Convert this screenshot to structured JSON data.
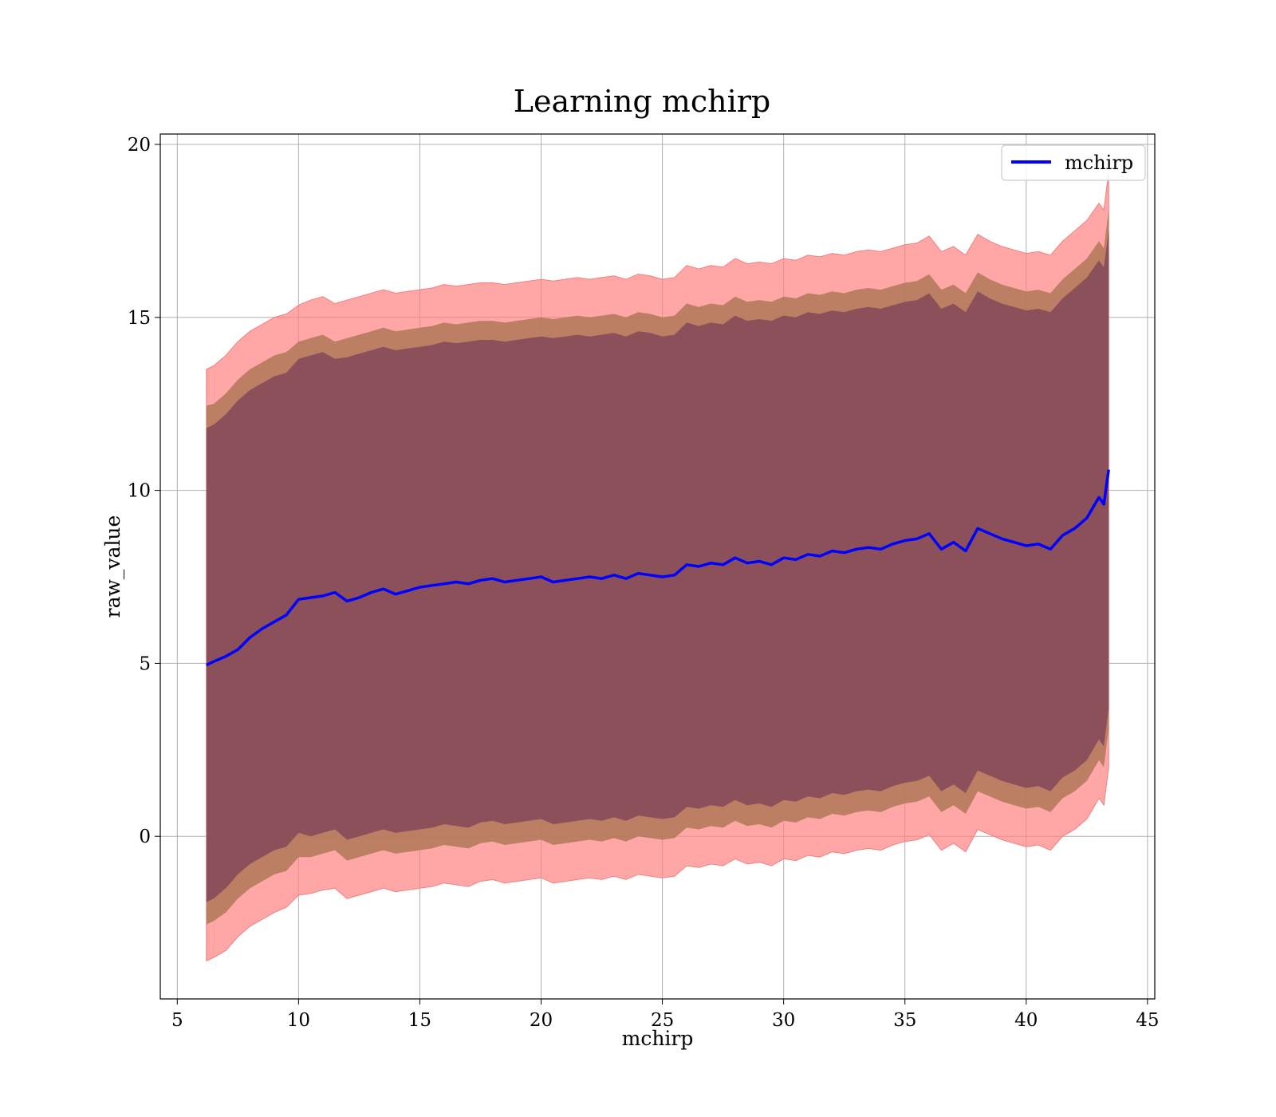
{
  "chart_data": {
    "type": "line",
    "title": "Learning mchirp",
    "xlabel": "mchirp",
    "ylabel": "raw_value",
    "xlim": [
      4.3,
      45.3
    ],
    "ylim": [
      -4.7,
      20.3
    ],
    "xticks": [
      5,
      10,
      15,
      20,
      25,
      30,
      35,
      40,
      45
    ],
    "yticks": [
      0,
      5,
      10,
      15,
      20
    ],
    "grid": true,
    "legend": {
      "position": "top-right",
      "entries": [
        "mchirp"
      ]
    },
    "colors": {
      "line": "#0000ff",
      "band_outer": "#ff8080",
      "band_middle": "#b07858",
      "band_inner": "#7c4058",
      "grid": "#b0b0b0"
    },
    "series": [
      {
        "name": "mchirp",
        "x": [
          6.2,
          6.5,
          7.0,
          7.5,
          8.0,
          8.5,
          9.0,
          9.5,
          10.0,
          10.5,
          11.0,
          11.5,
          12.0,
          12.5,
          13.0,
          13.5,
          14.0,
          14.5,
          15.0,
          15.5,
          16.0,
          16.5,
          17.0,
          17.5,
          18.0,
          18.5,
          19.0,
          19.5,
          20.0,
          20.5,
          21.0,
          21.5,
          22.0,
          22.5,
          23.0,
          23.5,
          24.0,
          24.5,
          25.0,
          25.5,
          26.0,
          26.5,
          27.0,
          27.5,
          28.0,
          28.5,
          29.0,
          29.5,
          30.0,
          30.5,
          31.0,
          31.5,
          32.0,
          32.5,
          33.0,
          33.5,
          34.0,
          34.5,
          35.0,
          35.5,
          36.0,
          36.5,
          37.0,
          37.5,
          38.0,
          38.5,
          39.0,
          39.5,
          40.0,
          40.5,
          41.0,
          41.5,
          42.0,
          42.5,
          43.0,
          43.2,
          43.4
        ],
        "y": [
          4.95,
          5.05,
          5.2,
          5.4,
          5.75,
          6.0,
          6.2,
          6.4,
          6.85,
          6.9,
          6.95,
          7.05,
          6.8,
          6.9,
          7.05,
          7.15,
          7.0,
          7.1,
          7.2,
          7.25,
          7.3,
          7.35,
          7.3,
          7.4,
          7.45,
          7.35,
          7.4,
          7.45,
          7.5,
          7.35,
          7.4,
          7.45,
          7.5,
          7.45,
          7.55,
          7.45,
          7.6,
          7.55,
          7.5,
          7.55,
          7.85,
          7.8,
          7.9,
          7.85,
          8.05,
          7.9,
          7.95,
          7.85,
          8.05,
          8.0,
          8.15,
          8.1,
          8.25,
          8.2,
          8.3,
          8.35,
          8.3,
          8.45,
          8.55,
          8.6,
          8.75,
          8.3,
          8.5,
          8.25,
          8.9,
          8.75,
          8.6,
          8.5,
          8.4,
          8.45,
          8.3,
          8.7,
          8.9,
          9.2,
          9.8,
          9.6,
          10.6
        ],
        "band_upper": [
          13.5,
          13.6,
          13.9,
          14.3,
          14.6,
          14.8,
          15.0,
          15.1,
          15.35,
          15.5,
          15.6,
          15.4,
          15.5,
          15.6,
          15.7,
          15.8,
          15.7,
          15.75,
          15.8,
          15.85,
          15.95,
          15.9,
          15.95,
          16.0,
          16.0,
          15.95,
          16.0,
          16.05,
          16.1,
          16.05,
          16.1,
          16.15,
          16.1,
          16.15,
          16.2,
          16.1,
          16.25,
          16.2,
          16.1,
          16.15,
          16.5,
          16.4,
          16.5,
          16.45,
          16.7,
          16.55,
          16.6,
          16.55,
          16.7,
          16.65,
          16.8,
          16.75,
          16.85,
          16.8,
          16.9,
          16.95,
          16.9,
          17.0,
          17.1,
          17.15,
          17.35,
          16.9,
          17.05,
          16.8,
          17.4,
          17.2,
          17.05,
          16.95,
          16.85,
          16.9,
          16.8,
          17.2,
          17.5,
          17.8,
          18.3,
          18.1,
          19.2
        ],
        "band_mid_upper": [
          12.45,
          12.5,
          12.8,
          13.2,
          13.5,
          13.7,
          13.9,
          14.0,
          14.3,
          14.4,
          14.5,
          14.3,
          14.4,
          14.5,
          14.6,
          14.7,
          14.6,
          14.65,
          14.7,
          14.75,
          14.85,
          14.8,
          14.85,
          14.9,
          14.9,
          14.85,
          14.9,
          14.95,
          15.0,
          14.95,
          15.0,
          15.05,
          15.0,
          15.05,
          15.1,
          15.0,
          15.15,
          15.1,
          15.0,
          15.05,
          15.4,
          15.3,
          15.4,
          15.35,
          15.6,
          15.45,
          15.5,
          15.45,
          15.6,
          15.55,
          15.7,
          15.65,
          15.75,
          15.7,
          15.8,
          15.85,
          15.8,
          15.9,
          16.0,
          16.05,
          16.25,
          15.8,
          15.95,
          15.7,
          16.3,
          16.1,
          15.95,
          15.85,
          15.75,
          15.8,
          15.7,
          16.1,
          16.4,
          16.7,
          17.2,
          17.0,
          18.1
        ],
        "band_inner_upper": [
          11.8,
          11.9,
          12.2,
          12.6,
          12.9,
          13.1,
          13.3,
          13.4,
          13.8,
          13.9,
          14.0,
          13.8,
          13.85,
          13.95,
          14.05,
          14.15,
          14.05,
          14.1,
          14.15,
          14.2,
          14.3,
          14.25,
          14.3,
          14.35,
          14.35,
          14.3,
          14.35,
          14.4,
          14.45,
          14.4,
          14.45,
          14.5,
          14.45,
          14.5,
          14.55,
          14.45,
          14.6,
          14.55,
          14.45,
          14.5,
          14.85,
          14.75,
          14.85,
          14.8,
          15.05,
          14.9,
          14.95,
          14.9,
          15.05,
          15.0,
          15.15,
          15.1,
          15.2,
          15.15,
          15.25,
          15.3,
          15.25,
          15.35,
          15.45,
          15.5,
          15.7,
          15.25,
          15.4,
          15.15,
          15.75,
          15.55,
          15.4,
          15.3,
          15.2,
          15.25,
          15.15,
          15.55,
          15.85,
          16.15,
          16.65,
          16.45,
          17.5
        ],
        "band_inner_lower": [
          -1.9,
          -1.8,
          -1.5,
          -1.1,
          -0.8,
          -0.6,
          -0.4,
          -0.3,
          0.1,
          0.0,
          0.1,
          0.2,
          -0.1,
          0.0,
          0.1,
          0.2,
          0.1,
          0.15,
          0.2,
          0.25,
          0.35,
          0.3,
          0.25,
          0.4,
          0.45,
          0.35,
          0.4,
          0.45,
          0.5,
          0.35,
          0.4,
          0.45,
          0.5,
          0.45,
          0.55,
          0.45,
          0.6,
          0.55,
          0.5,
          0.55,
          0.85,
          0.8,
          0.9,
          0.85,
          1.05,
          0.9,
          0.95,
          0.85,
          1.05,
          1.0,
          1.15,
          1.1,
          1.25,
          1.2,
          1.3,
          1.35,
          1.3,
          1.45,
          1.55,
          1.6,
          1.75,
          1.3,
          1.5,
          1.25,
          1.9,
          1.75,
          1.6,
          1.5,
          1.4,
          1.45,
          1.3,
          1.7,
          1.9,
          2.2,
          2.8,
          2.6,
          3.7
        ],
        "band_mid_lower": [
          -2.55,
          -2.45,
          -2.2,
          -1.8,
          -1.5,
          -1.3,
          -1.1,
          -1.0,
          -0.6,
          -0.6,
          -0.5,
          -0.4,
          -0.7,
          -0.6,
          -0.5,
          -0.4,
          -0.5,
          -0.45,
          -0.4,
          -0.35,
          -0.25,
          -0.3,
          -0.35,
          -0.2,
          -0.15,
          -0.25,
          -0.2,
          -0.15,
          -0.1,
          -0.25,
          -0.2,
          -0.15,
          -0.1,
          -0.15,
          -0.05,
          -0.15,
          0.0,
          -0.05,
          -0.1,
          -0.05,
          0.25,
          0.2,
          0.3,
          0.25,
          0.45,
          0.3,
          0.35,
          0.25,
          0.45,
          0.4,
          0.55,
          0.5,
          0.65,
          0.6,
          0.7,
          0.75,
          0.7,
          0.85,
          0.95,
          1.0,
          1.15,
          0.7,
          0.9,
          0.65,
          1.3,
          1.15,
          1.0,
          0.9,
          0.8,
          0.85,
          0.7,
          1.1,
          1.3,
          1.6,
          2.2,
          2.0,
          3.1
        ],
        "band_lower": [
          -3.6,
          -3.5,
          -3.3,
          -2.9,
          -2.6,
          -2.4,
          -2.2,
          -2.05,
          -1.7,
          -1.65,
          -1.55,
          -1.5,
          -1.8,
          -1.7,
          -1.6,
          -1.5,
          -1.6,
          -1.55,
          -1.5,
          -1.45,
          -1.35,
          -1.4,
          -1.45,
          -1.3,
          -1.25,
          -1.35,
          -1.3,
          -1.25,
          -1.2,
          -1.35,
          -1.3,
          -1.25,
          -1.2,
          -1.25,
          -1.15,
          -1.25,
          -1.1,
          -1.15,
          -1.2,
          -1.15,
          -0.85,
          -0.9,
          -0.8,
          -0.85,
          -0.65,
          -0.8,
          -0.75,
          -0.85,
          -0.65,
          -0.7,
          -0.55,
          -0.6,
          -0.45,
          -0.5,
          -0.4,
          -0.35,
          -0.4,
          -0.25,
          -0.15,
          -0.1,
          0.05,
          -0.4,
          -0.2,
          -0.45,
          0.2,
          0.05,
          -0.1,
          -0.2,
          -0.3,
          -0.25,
          -0.4,
          0.0,
          0.2,
          0.5,
          1.1,
          0.9,
          2.0
        ]
      }
    ]
  }
}
